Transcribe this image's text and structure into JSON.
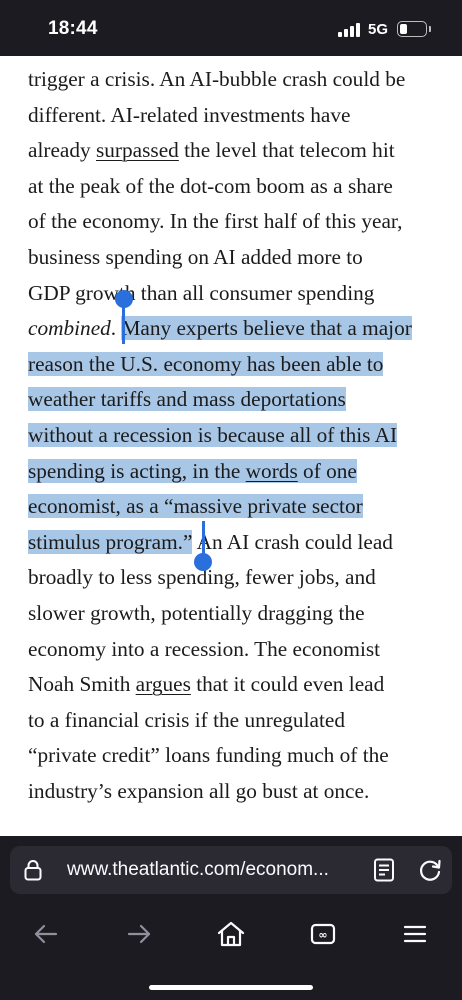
{
  "status_bar": {
    "time": "18:44",
    "network": "5G",
    "signal_bars": 4,
    "battery_level": 0.3
  },
  "article": {
    "lines": [
      {
        "segments": [
          {
            "text": "trigger a crisis. An AI-bubble crash could be"
          }
        ]
      },
      {
        "segments": [
          {
            "text": "different. AI-related investments have"
          }
        ]
      },
      {
        "segments": [
          {
            "text": "already "
          },
          {
            "text": "surpassed",
            "link": true
          },
          {
            "text": " the level that telecom hit"
          }
        ]
      },
      {
        "segments": [
          {
            "text": "at the peak of the dot-com boom as a share"
          }
        ]
      },
      {
        "segments": [
          {
            "text": "of the economy. In the first half of this year,"
          }
        ]
      },
      {
        "segments": [
          {
            "text": "business spending on AI added more to"
          }
        ]
      },
      {
        "segments": [
          {
            "text": "GDP growth than all consumer spending"
          }
        ]
      },
      {
        "segments": [
          {
            "text": "combined",
            "italic": true
          },
          {
            "text": ". "
          },
          {
            "text": "Many experts believe that a major",
            "selected": true
          }
        ]
      },
      {
        "segments": [
          {
            "text": "reason the U.S. economy has been able to",
            "selected": true
          }
        ]
      },
      {
        "segments": [
          {
            "text": "weather tariffs and mass deportations",
            "selected": true
          }
        ]
      },
      {
        "segments": [
          {
            "text": "without a recession is because all of this AI",
            "selected": true
          }
        ]
      },
      {
        "segments": [
          {
            "text": "spending is acting, in the ",
            "selected": true
          },
          {
            "text": "words",
            "link": true,
            "selected": true
          },
          {
            "text": " of one",
            "selected": true
          }
        ]
      },
      {
        "segments": [
          {
            "text": "economist, as a “massive private sector",
            "selected": true
          }
        ]
      },
      {
        "segments": [
          {
            "text": "stimulus program.”",
            "selected": true
          },
          {
            "text": " An AI crash could lead"
          }
        ]
      },
      {
        "segments": [
          {
            "text": "broadly to less spending, fewer jobs, and"
          }
        ]
      },
      {
        "segments": [
          {
            "text": "slower growth, potentially dragging the"
          }
        ]
      },
      {
        "segments": [
          {
            "text": "economy into a recession. The economist"
          }
        ]
      },
      {
        "segments": [
          {
            "text": "Noah Smith "
          },
          {
            "text": "argues",
            "link": true
          },
          {
            "text": " that it could even lead"
          }
        ]
      },
      {
        "segments": [
          {
            "text": "to a financial crisis if the unregulated"
          }
        ]
      },
      {
        "segments": [
          {
            "text": "“private credit” loans funding much of the"
          }
        ]
      },
      {
        "segments": [
          {
            "text": "industry’s expansion all go bust at once."
          }
        ]
      }
    ]
  },
  "browser": {
    "url": "www.theatlantic.com/econom...",
    "lock_icon": "lock-icon",
    "reader_icon": "reader-view-icon",
    "reload_icon": "reload-icon",
    "toolbar": [
      {
        "name": "back-button",
        "icon": "arrow-left-icon",
        "enabled": false
      },
      {
        "name": "forward-button",
        "icon": "arrow-right-icon",
        "enabled": false
      },
      {
        "name": "home-button",
        "icon": "home-icon",
        "enabled": true
      },
      {
        "name": "tabs-button",
        "icon": "tabs-icon",
        "enabled": true
      },
      {
        "name": "menu-button",
        "icon": "menu-icon",
        "enabled": true
      }
    ]
  },
  "colors": {
    "chrome_bg": "#1c1b22",
    "urlbar_bg": "#2b2a33",
    "selection": "#a8c6e6",
    "selection_handle": "#2a6fdb",
    "text": "#1b1b1b",
    "disabled_icon": "#8f8f9d",
    "icon": "#fbfbfe"
  }
}
